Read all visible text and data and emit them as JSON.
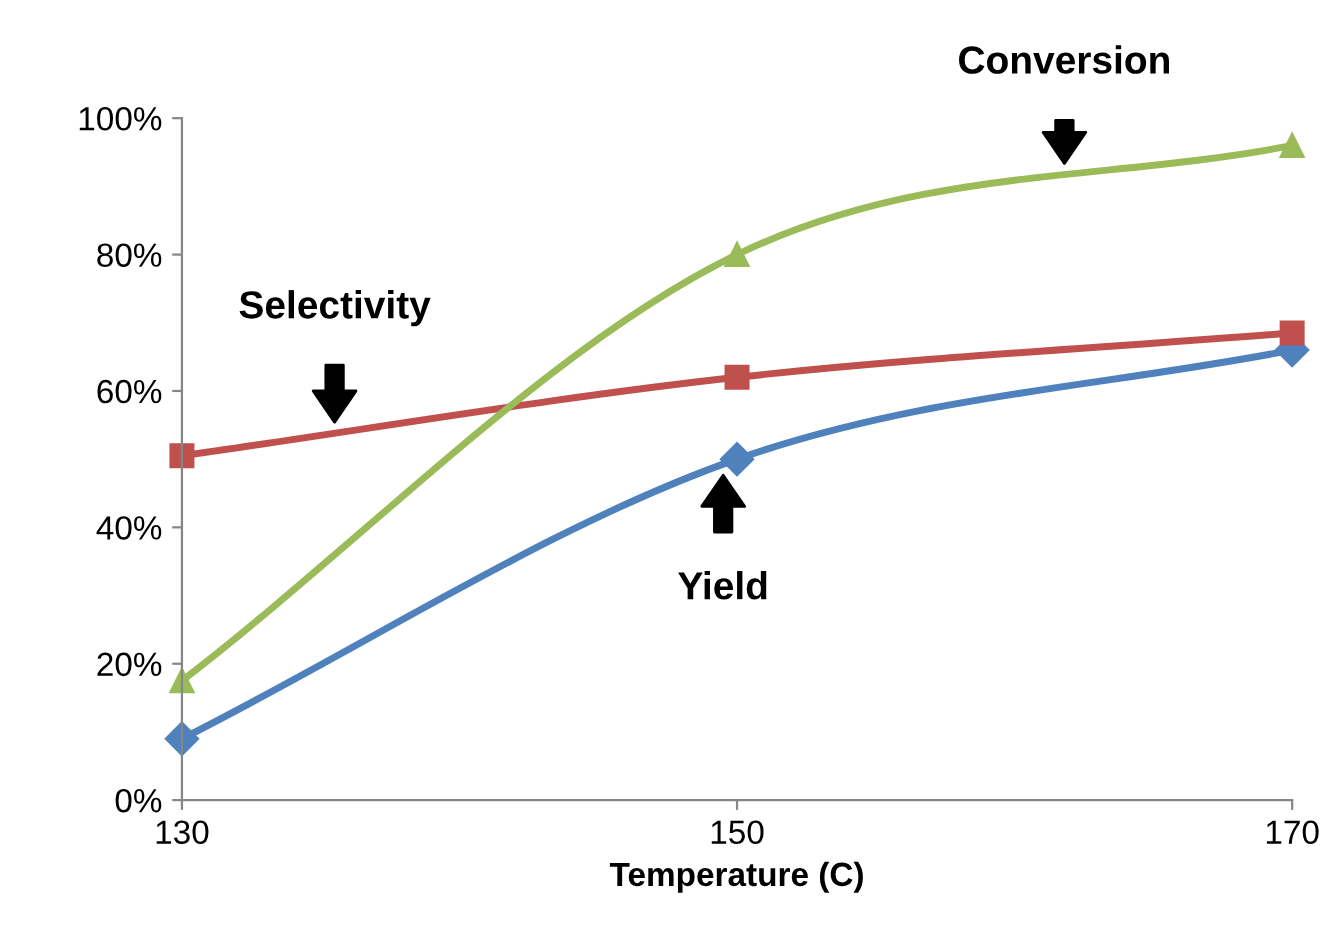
{
  "chart_data": {
    "type": "line",
    "xlabel": "Temperature (C)",
    "x": [
      130,
      150,
      170
    ],
    "xlim": [
      130,
      170
    ],
    "xticks": [
      130,
      150,
      170
    ],
    "ylim": [
      0,
      1
    ],
    "yticks": [
      {
        "value": 0,
        "label": "0%"
      },
      {
        "value": 0.2,
        "label": "20%"
      },
      {
        "value": 0.4,
        "label": "40%"
      },
      {
        "value": 0.6,
        "label": "60%"
      },
      {
        "value": 0.8,
        "label": "80%"
      },
      {
        "value": 1,
        "label": "100%"
      }
    ],
    "grid": false,
    "line_style": "solid",
    "series": [
      {
        "name": "Yield",
        "color": "#4f81bd",
        "marker": "diamond",
        "values": [
          0.09,
          0.5,
          0.66
        ]
      },
      {
        "name": "Selectivity",
        "color": "#c0504d",
        "marker": "square",
        "values": [
          0.505,
          0.62,
          0.685
        ]
      },
      {
        "name": "Conversion",
        "color": "#9bbb59",
        "marker": "triangle",
        "values": [
          0.175,
          0.8,
          0.96
        ]
      }
    ]
  }
}
